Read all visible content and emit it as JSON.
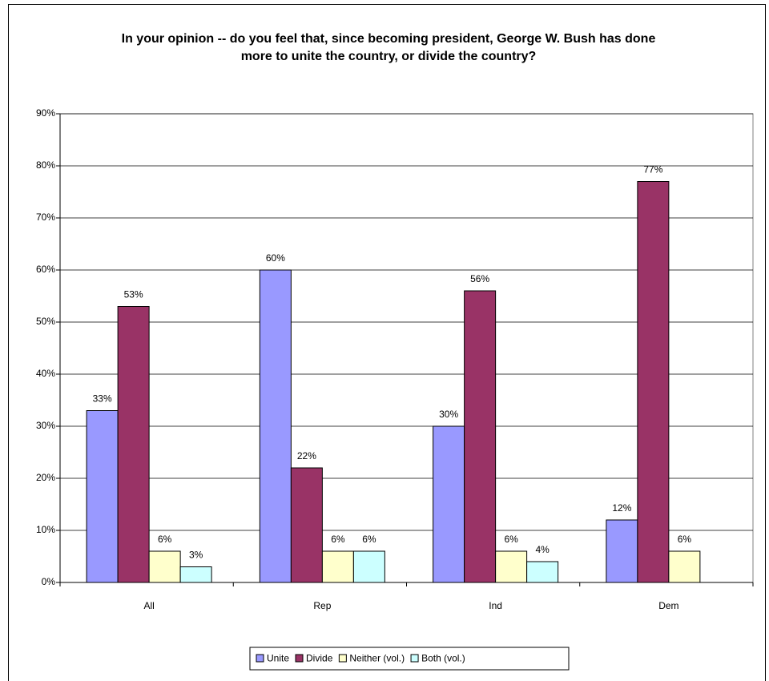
{
  "chart_data": {
    "type": "bar",
    "title": "In your opinion -- do you feel that, since becoming president, George W. Bush has done more to unite the country, or divide the country?",
    "categories": [
      "All",
      "Rep",
      "Ind",
      "Dem"
    ],
    "series": [
      {
        "name": "Unite",
        "color": "#9999ff",
        "values": [
          33,
          60,
          30,
          12
        ],
        "value_labels": [
          "33%",
          "60%",
          "30%",
          "12%"
        ]
      },
      {
        "name": "Divide",
        "color": "#993366",
        "values": [
          53,
          22,
          56,
          77
        ],
        "value_labels": [
          "53%",
          "22%",
          "56%",
          "77%"
        ]
      },
      {
        "name": "Neither (vol.)",
        "color": "#ffffcc",
        "values": [
          6,
          6,
          6,
          6
        ],
        "value_labels": [
          "6%",
          "6%",
          "6%",
          "6%"
        ]
      },
      {
        "name": "Both (vol.)",
        "color": "#ccffff",
        "values": [
          3,
          6,
          4,
          null
        ],
        "value_labels": [
          "3%",
          "6%",
          "4%",
          null
        ]
      }
    ],
    "ylim": [
      0,
      90
    ],
    "yticks": [
      {
        "value": 0,
        "label": "0%"
      },
      {
        "value": 10,
        "label": "10%"
      },
      {
        "value": 20,
        "label": "20%"
      },
      {
        "value": 30,
        "label": "30%"
      },
      {
        "value": 40,
        "label": "40%"
      },
      {
        "value": 50,
        "label": "50%"
      },
      {
        "value": 60,
        "label": "60%"
      },
      {
        "value": 70,
        "label": "70%"
      },
      {
        "value": 80,
        "label": "80%"
      },
      {
        "value": 90,
        "label": "90%"
      }
    ],
    "grid": true,
    "legend": "bottom"
  }
}
